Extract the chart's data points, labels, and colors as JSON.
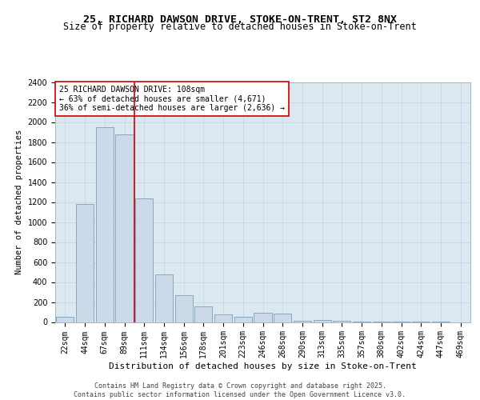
{
  "title_line1": "25, RICHARD DAWSON DRIVE, STOKE-ON-TRENT, ST2 8NX",
  "title_line2": "Size of property relative to detached houses in Stoke-on-Trent",
  "xlabel": "Distribution of detached houses by size in Stoke-on-Trent",
  "ylabel": "Number of detached properties",
  "categories": [
    "22sqm",
    "44sqm",
    "67sqm",
    "89sqm",
    "111sqm",
    "134sqm",
    "156sqm",
    "178sqm",
    "201sqm",
    "223sqm",
    "246sqm",
    "268sqm",
    "290sqm",
    "313sqm",
    "335sqm",
    "357sqm",
    "380sqm",
    "402sqm",
    "424sqm",
    "447sqm",
    "469sqm"
  ],
  "values": [
    50,
    1180,
    1950,
    1880,
    1240,
    480,
    265,
    160,
    75,
    50,
    95,
    85,
    15,
    20,
    10,
    5,
    5,
    5,
    3,
    2,
    0
  ],
  "bar_color": "#ccd9e8",
  "bar_edge_color": "#7090b0",
  "vline_color": "#cc0000",
  "vline_position": 3.5,
  "annotation_text": "25 RICHARD DAWSON DRIVE: 108sqm\n← 63% of detached houses are smaller (4,671)\n36% of semi-detached houses are larger (2,636) →",
  "annotation_box_facecolor": "#ffffff",
  "annotation_box_edgecolor": "#cc0000",
  "ylim": [
    0,
    2400
  ],
  "yticks": [
    0,
    200,
    400,
    600,
    800,
    1000,
    1200,
    1400,
    1600,
    1800,
    2000,
    2200,
    2400
  ],
  "grid_color": "#c5d5e5",
  "plot_bg_color": "#dce8f0",
  "fig_bg_color": "#ffffff",
  "title_fontsize": 9.5,
  "subtitle_fontsize": 8.5,
  "xlabel_fontsize": 8,
  "ylabel_fontsize": 7.5,
  "tick_fontsize": 7,
  "annotation_fontsize": 7,
  "footer_fontsize": 6,
  "footer_text": "Contains HM Land Registry data © Crown copyright and database right 2025.\nContains public sector information licensed under the Open Government Licence v3.0."
}
